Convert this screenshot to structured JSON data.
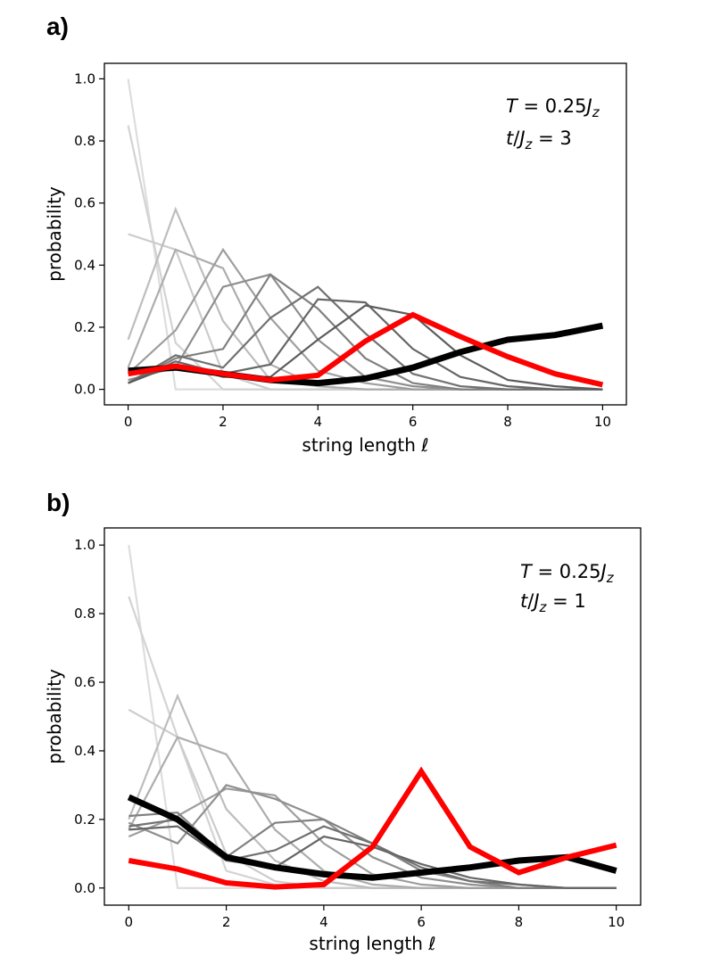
{
  "chart_data": [
    {
      "type": "line",
      "panel_label": "a)",
      "xlabel": "string length ℓ",
      "ylabel": "probability",
      "xlim": [
        -0.5,
        10.5
      ],
      "ylim": [
        -0.05,
        1.05
      ],
      "xticks": [
        0,
        2,
        4,
        6,
        8,
        10
      ],
      "xtick_labels": [
        "0",
        "2",
        "4",
        "6",
        "8",
        "10"
      ],
      "yticks": [
        0.0,
        0.2,
        0.4,
        0.6,
        0.8,
        1.0
      ],
      "ytick_labels": [
        "0.0",
        "0.2",
        "0.4",
        "0.6",
        "0.8",
        "1.0"
      ],
      "annotations": [
        "T = 0.25J_z",
        "t/J_z = 3"
      ],
      "x": [
        0,
        1,
        2,
        3,
        4,
        5,
        6,
        7,
        8,
        9,
        10
      ],
      "series": [
        {
          "name": "gray-1",
          "color": "#dddddd",
          "values": [
            1.0,
            0.0,
            0.0,
            0.0,
            0.0,
            0.0,
            0.0,
            0.0,
            0.0,
            0.0,
            0.0
          ]
        },
        {
          "name": "gray-2",
          "color": "#d3d3d3",
          "values": [
            0.85,
            0.15,
            0.0,
            0.0,
            0.0,
            0.0,
            0.0,
            0.0,
            0.0,
            0.0,
            0.0
          ]
        },
        {
          "name": "gray-3",
          "color": "#cccccc",
          "values": [
            0.5,
            0.45,
            0.05,
            0.0,
            0.0,
            0.0,
            0.0,
            0.0,
            0.0,
            0.0,
            0.0
          ]
        },
        {
          "name": "gray-4",
          "color": "#bdbdbd",
          "values": [
            0.16,
            0.58,
            0.22,
            0.03,
            0.01,
            0.0,
            0.0,
            0.0,
            0.0,
            0.0,
            0.0
          ]
        },
        {
          "name": "gray-5",
          "color": "#adadad",
          "values": [
            0.07,
            0.45,
            0.39,
            0.08,
            0.01,
            0.0,
            0.0,
            0.0,
            0.0,
            0.0,
            0.0
          ]
        },
        {
          "name": "gray-6",
          "color": "#9e9e9e",
          "values": [
            0.05,
            0.19,
            0.45,
            0.23,
            0.06,
            0.02,
            0.0,
            0.0,
            0.0,
            0.0,
            0.0
          ]
        },
        {
          "name": "gray-7",
          "color": "#8f8f8f",
          "values": [
            0.03,
            0.07,
            0.33,
            0.37,
            0.16,
            0.04,
            0.01,
            0.0,
            0.0,
            0.0,
            0.0
          ]
        },
        {
          "name": "gray-8",
          "color": "#808080",
          "values": [
            0.02,
            0.1,
            0.13,
            0.37,
            0.26,
            0.1,
            0.02,
            0.0,
            0.0,
            0.0,
            0.0
          ]
        },
        {
          "name": "gray-9",
          "color": "#727272",
          "values": [
            0.02,
            0.11,
            0.07,
            0.23,
            0.33,
            0.18,
            0.05,
            0.01,
            0.0,
            0.0,
            0.0
          ]
        },
        {
          "name": "gray-10",
          "color": "#666666",
          "values": [
            0.02,
            0.09,
            0.05,
            0.08,
            0.29,
            0.28,
            0.13,
            0.04,
            0.01,
            0.0,
            0.0
          ]
        },
        {
          "name": "gray-11",
          "color": "#5c5c5c",
          "values": [
            0.02,
            0.08,
            0.04,
            0.04,
            0.16,
            0.27,
            0.24,
            0.11,
            0.03,
            0.01,
            0.0
          ]
        },
        {
          "name": "black",
          "color": "#000000",
          "width": 7,
          "values": [
            0.06,
            0.07,
            0.05,
            0.03,
            0.02,
            0.035,
            0.07,
            0.12,
            0.16,
            0.175,
            0.205
          ]
        },
        {
          "name": "red",
          "color": "#ff0000",
          "width": 6,
          "values": [
            0.05,
            0.075,
            0.05,
            0.03,
            0.045,
            0.155,
            0.24,
            0.17,
            0.105,
            0.05,
            0.015
          ]
        }
      ]
    },
    {
      "type": "line",
      "panel_label": "b)",
      "xlabel": "string length ℓ",
      "ylabel": "probability",
      "xlim": [
        -0.5,
        10.5
      ],
      "ylim": [
        -0.05,
        1.05
      ],
      "xticks": [
        0,
        2,
        4,
        6,
        8,
        10
      ],
      "xtick_labels": [
        "0",
        "2",
        "4",
        "6",
        "8",
        "10"
      ],
      "yticks": [
        0.0,
        0.2,
        0.4,
        0.6,
        0.8,
        1.0
      ],
      "ytick_labels": [
        "0.0",
        "0.2",
        "0.4",
        "0.6",
        "0.8",
        "1.0"
      ],
      "annotations": [
        "T = 0.25J_z",
        "t/J_z = 1"
      ],
      "x": [
        0,
        1,
        2,
        3,
        4,
        5,
        6,
        7,
        8,
        9,
        10
      ],
      "series": [
        {
          "name": "gray-1",
          "color": "#dddddd",
          "values": [
            1.0,
            0.0,
            0.0,
            0.0,
            0.0,
            0.0,
            0.0,
            0.0,
            0.0,
            0.0,
            0.0
          ]
        },
        {
          "name": "gray-2",
          "color": "#d3d3d3",
          "values": [
            0.85,
            0.44,
            0.05,
            0.01,
            0.0,
            0.0,
            0.0,
            0.0,
            0.0,
            0.0,
            0.0
          ]
        },
        {
          "name": "gray-3",
          "color": "#cccccc",
          "values": [
            0.52,
            0.44,
            0.1,
            0.02,
            0.0,
            0.0,
            0.0,
            0.0,
            0.0,
            0.0,
            0.0
          ]
        },
        {
          "name": "gray-4",
          "color": "#bdbdbd",
          "values": [
            0.2,
            0.56,
            0.23,
            0.08,
            0.02,
            0.0,
            0.0,
            0.0,
            0.0,
            0.0,
            0.0
          ]
        },
        {
          "name": "gray-5",
          "color": "#adadad",
          "values": [
            0.17,
            0.44,
            0.39,
            0.17,
            0.05,
            0.01,
            0.0,
            0.0,
            0.0,
            0.0,
            0.0
          ]
        },
        {
          "name": "gray-6",
          "color": "#9e9e9e",
          "values": [
            0.15,
            0.21,
            0.29,
            0.27,
            0.13,
            0.04,
            0.01,
            0.0,
            0.0,
            0.0,
            0.0
          ]
        },
        {
          "name": "gray-7",
          "color": "#8f8f8f",
          "values": [
            0.19,
            0.13,
            0.3,
            0.26,
            0.2,
            0.09,
            0.03,
            0.01,
            0.0,
            0.0,
            0.0
          ]
        },
        {
          "name": "gray-8",
          "color": "#808080",
          "values": [
            0.21,
            0.22,
            0.09,
            0.19,
            0.2,
            0.13,
            0.05,
            0.02,
            0.0,
            0.0,
            0.0
          ]
        },
        {
          "name": "gray-9",
          "color": "#727272",
          "values": [
            0.18,
            0.2,
            0.08,
            0.11,
            0.18,
            0.13,
            0.06,
            0.02,
            0.01,
            0.0,
            0.0
          ]
        },
        {
          "name": "gray-10",
          "color": "#666666",
          "values": [
            0.17,
            0.18,
            0.08,
            0.06,
            0.15,
            0.12,
            0.07,
            0.03,
            0.01,
            0.0,
            0.0
          ]
        },
        {
          "name": "black",
          "color": "#000000",
          "width": 7,
          "values": [
            0.265,
            0.2,
            0.09,
            0.06,
            0.04,
            0.03,
            0.045,
            0.06,
            0.08,
            0.09,
            0.05
          ]
        },
        {
          "name": "red",
          "color": "#ff0000",
          "width": 6,
          "values": [
            0.08,
            0.055,
            0.015,
            0.003,
            0.01,
            0.12,
            0.34,
            0.12,
            0.045,
            0.09,
            0.125
          ]
        }
      ]
    }
  ]
}
